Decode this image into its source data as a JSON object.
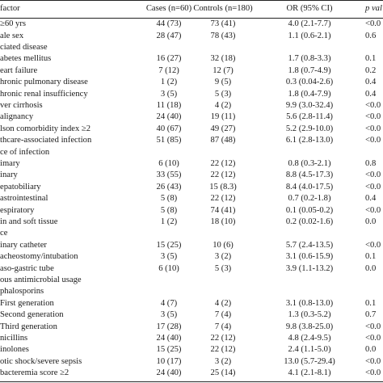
{
  "table": {
    "headers": {
      "factor": "factor",
      "cases": "Cases (n=60)",
      "controls": "Controls (n=180)",
      "or": "OR (95% CI)",
      "p": "p val"
    },
    "rows": [
      {
        "factor": "≥60 yrs",
        "cases": "44 (73)",
        "controls": "73 (41)",
        "or": "4.0 (2.1-7.7)",
        "p": "<0.0"
      },
      {
        "factor": "ale sex",
        "cases": "28 (47)",
        "controls": "78 (43)",
        "or": "1.1 (0.6-2.1)",
        "p": "0.6"
      },
      {
        "factor": "ciated disease",
        "cases": "",
        "controls": "",
        "or": "",
        "p": ""
      },
      {
        "factor": "abetes mellitus",
        "cases": "16 (27)",
        "controls": "32 (18)",
        "or": "1.7 (0.8-3.3)",
        "p": "0.1"
      },
      {
        "factor": "eart failure",
        "cases": "7 (12)",
        "controls": "12 (7)",
        "or": "1.8 (0.7-4.9)",
        "p": "0.2"
      },
      {
        "factor": "hronic pulmonary disease",
        "cases": "1 (2)",
        "controls": "9 (5)",
        "or": "0.3 (0.04-2.6)",
        "p": "0.4"
      },
      {
        "factor": "hronic renal insufficiency",
        "cases": "3 (5)",
        "controls": "5 (3)",
        "or": "1.8 (0.4-7.9)",
        "p": "0.4"
      },
      {
        "factor": "ver cirrhosis",
        "cases": "11 (18)",
        "controls": "4 (2)",
        "or": "9.9 (3.0-32.4)",
        "p": "<0.0"
      },
      {
        "factor": "alignancy",
        "cases": "24 (40)",
        "controls": "19 (11)",
        "or": "5.6 (2.8-11.4)",
        "p": "<0.0"
      },
      {
        "factor": "lson comorbidity index ≥2",
        "cases": "40 (67)",
        "controls": "49 (27)",
        "or": "5.2 (2.9-10.0)",
        "p": "<0.0"
      },
      {
        "factor": "thcare-associated infection",
        "cases": "51 (85)",
        "controls": "87 (48)",
        "or": "6.1 (2.8-13.0)",
        "p": "<0.0"
      },
      {
        "factor": "ce of infection",
        "cases": "",
        "controls": "",
        "or": "",
        "p": ""
      },
      {
        "factor": "imary",
        "cases": "6 (10)",
        "controls": "22 (12)",
        "or": "0.8 (0.3-2.1)",
        "p": "0.8"
      },
      {
        "factor": "inary",
        "cases": "33 (55)",
        "controls": "22 (12)",
        "or": "8.8 (4.5-17.3)",
        "p": "<0.0"
      },
      {
        "factor": "epatobiliary",
        "cases": "26 (43)",
        "controls": "15 (8.3)",
        "or": "8.4 (4.0-17.5)",
        "p": "<0.0"
      },
      {
        "factor": "astrointestinal",
        "cases": "5 (8)",
        "controls": "22 (12)",
        "or": "0.7 (0.2-1.8)",
        "p": "0.4"
      },
      {
        "factor": "espiratory",
        "cases": "5 (8)",
        "controls": "74 (41)",
        "or": "0.1 (0.05-0.2)",
        "p": "<0.0"
      },
      {
        "factor": "in and soft tissue",
        "cases": "1 (2)",
        "controls": "18 (10)",
        "or": "0.2 (0.02-1.6)",
        "p": "0.0"
      },
      {
        "factor": "ce",
        "cases": "",
        "controls": "",
        "or": "",
        "p": ""
      },
      {
        "factor": "inary catheter",
        "cases": "15 (25)",
        "controls": "10 (6)",
        "or": "5.7 (2.4-13.5)",
        "p": "<0.0"
      },
      {
        "factor": "acheostomy/intubation",
        "cases": "3 (5)",
        "controls": "3 (2)",
        "or": "3.1 (0.6-15.9)",
        "p": "0.1"
      },
      {
        "factor": "aso-gastric tube",
        "cases": "6 (10)",
        "controls": "5 (3)",
        "or": "3.9 (1.1-13.2)",
        "p": "0.0"
      },
      {
        "factor": "ous antimicrobial  usage",
        "cases": "",
        "controls": "",
        "or": "",
        "p": ""
      },
      {
        "factor": "phalosporins",
        "cases": "",
        "controls": "",
        "or": "",
        "p": ""
      },
      {
        "factor": "First generation",
        "cases": "4 (7)",
        "controls": "4 (2)",
        "or": "3.1 (0.8-13.0)",
        "p": "0.1"
      },
      {
        "factor": "Second generation",
        "cases": "3 (5)",
        "controls": "7 (4)",
        "or": "1.3 (0.3-5.2)",
        "p": "0.7"
      },
      {
        "factor": "Third generation",
        "cases": "17 (28)",
        "controls": "7 (4)",
        "or": "9.8 (3.8-25.0)",
        "p": "<0.0"
      },
      {
        "factor": "nicillins",
        "cases": "24 (40)",
        "controls": "22 (12)",
        "or": "4.8 (2.4-9.5)",
        "p": "<0.0"
      },
      {
        "factor": "inolones",
        "cases": "15 (25)",
        "controls": "22 (12)",
        "or": "2.4 (1.1-5.0)",
        "p": "0.0"
      },
      {
        "factor": "otic shock/severe sepsis",
        "cases": "10 (17)",
        "controls": "3 (2)",
        "or": "13.0 (5.7-29.4)",
        "p": "<0.0"
      },
      {
        "factor": "bacteremia score ≥2",
        "cases": "24 (40)",
        "controls": "25 (14)",
        "or": "4.1 (2.1-8.1)",
        "p": "<0.0"
      }
    ]
  }
}
